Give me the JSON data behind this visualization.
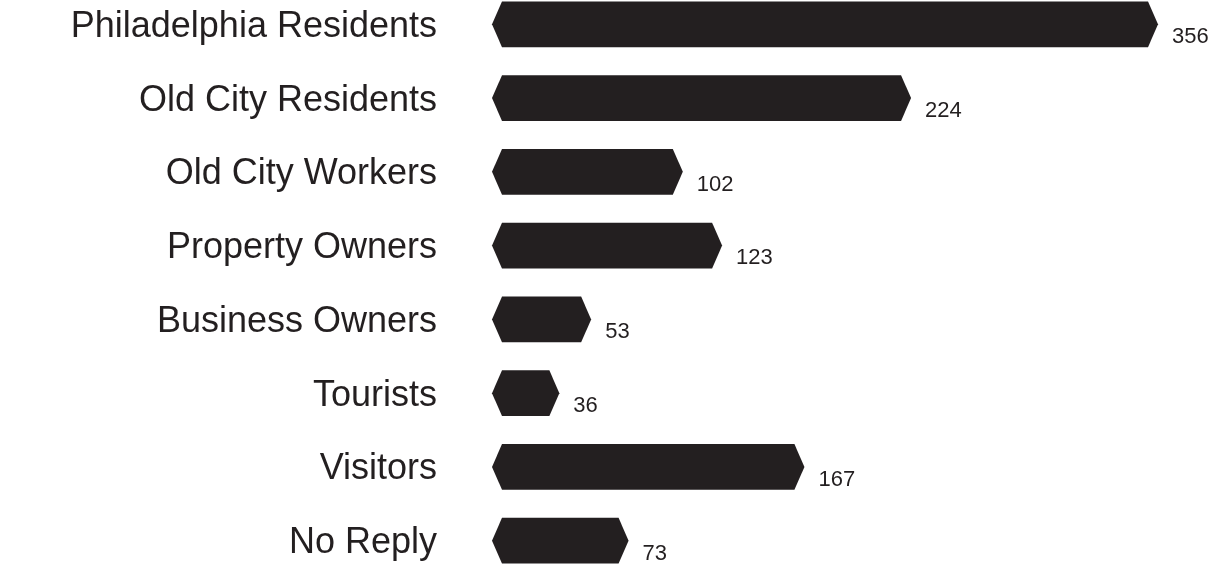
{
  "chart_data": {
    "type": "bar",
    "orientation": "horizontal",
    "categories": [
      "Philadelphia Residents",
      "Old City Residents",
      "Old City Workers",
      "Property Owners",
      "Business Owners",
      "Tourists",
      "Visitors",
      "No Reply"
    ],
    "values": [
      356,
      224,
      102,
      123,
      53,
      36,
      167,
      73
    ],
    "color": "#231f20",
    "data_labels": true
  }
}
